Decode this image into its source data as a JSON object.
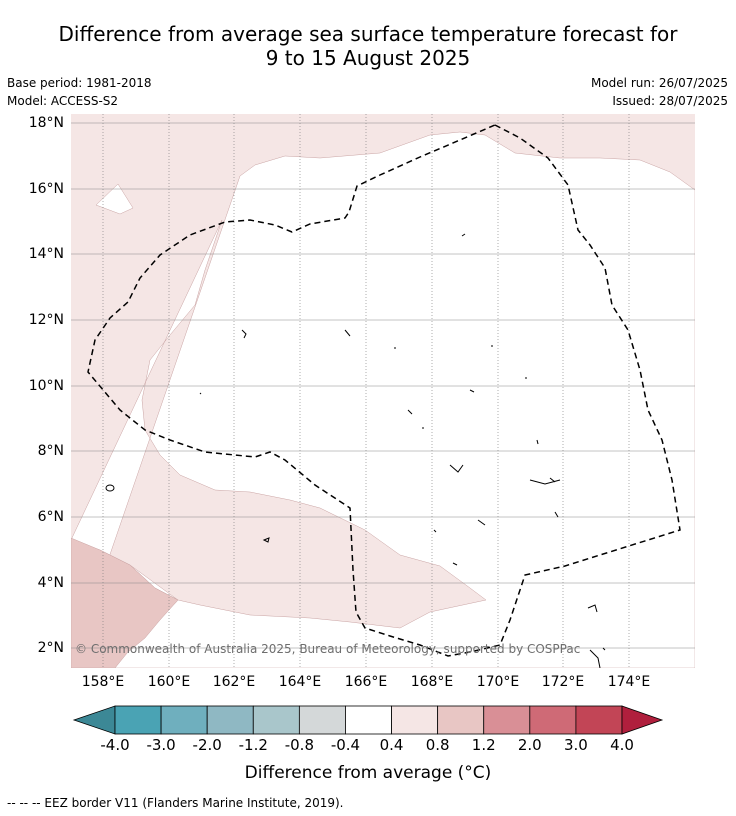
{
  "title": {
    "line1": "Difference from average sea surface temperature forecast for",
    "line2": "9 to 15 August 2025"
  },
  "meta": {
    "base_period": "Base period: 1981-2018",
    "model": "Model: ACCESS-S2",
    "model_run": "Model run: 26/07/2025",
    "issued": "Issued: 28/07/2025"
  },
  "map": {
    "lat_labels": [
      "18°N",
      "16°N",
      "14°N",
      "12°N",
      "10°N",
      "8°N",
      "6°N",
      "4°N",
      "2°N"
    ],
    "lon_labels": [
      "158°E",
      "160°E",
      "162°E",
      "164°E",
      "166°E",
      "168°E",
      "170°E",
      "172°E",
      "174°E"
    ],
    "copyright": "© Commonwealth of Australia 2025, Bureau of Meteorology, supported by COSPPac",
    "region_colors": {
      "0.4 to 0.8": "#f5e6e5",
      "0.8 to 1.2": "#e8c6c4",
      "-0.4 to 0.4": "#ffffff"
    }
  },
  "colorbar": {
    "ticks": [
      "-4.0",
      "-3.0",
      "-2.0",
      "-1.2",
      "-0.8",
      "-0.4",
      "0.4",
      "0.8",
      "1.2",
      "2.0",
      "3.0",
      "4.0"
    ],
    "colors": [
      "#3c8896",
      "#4aa3b4",
      "#6fafbe",
      "#8fb8c3",
      "#a9c6cb",
      "#d4d8d9",
      "#ffffff",
      "#f5e6e5",
      "#e8c6c4",
      "#d98f96",
      "#cf6a76",
      "#c24556",
      "#b01f3d"
    ],
    "title": "Difference from average (°C)"
  },
  "footnote": "--  --  -- EEZ border V11 (Flanders Marine Institute, 2019)."
}
